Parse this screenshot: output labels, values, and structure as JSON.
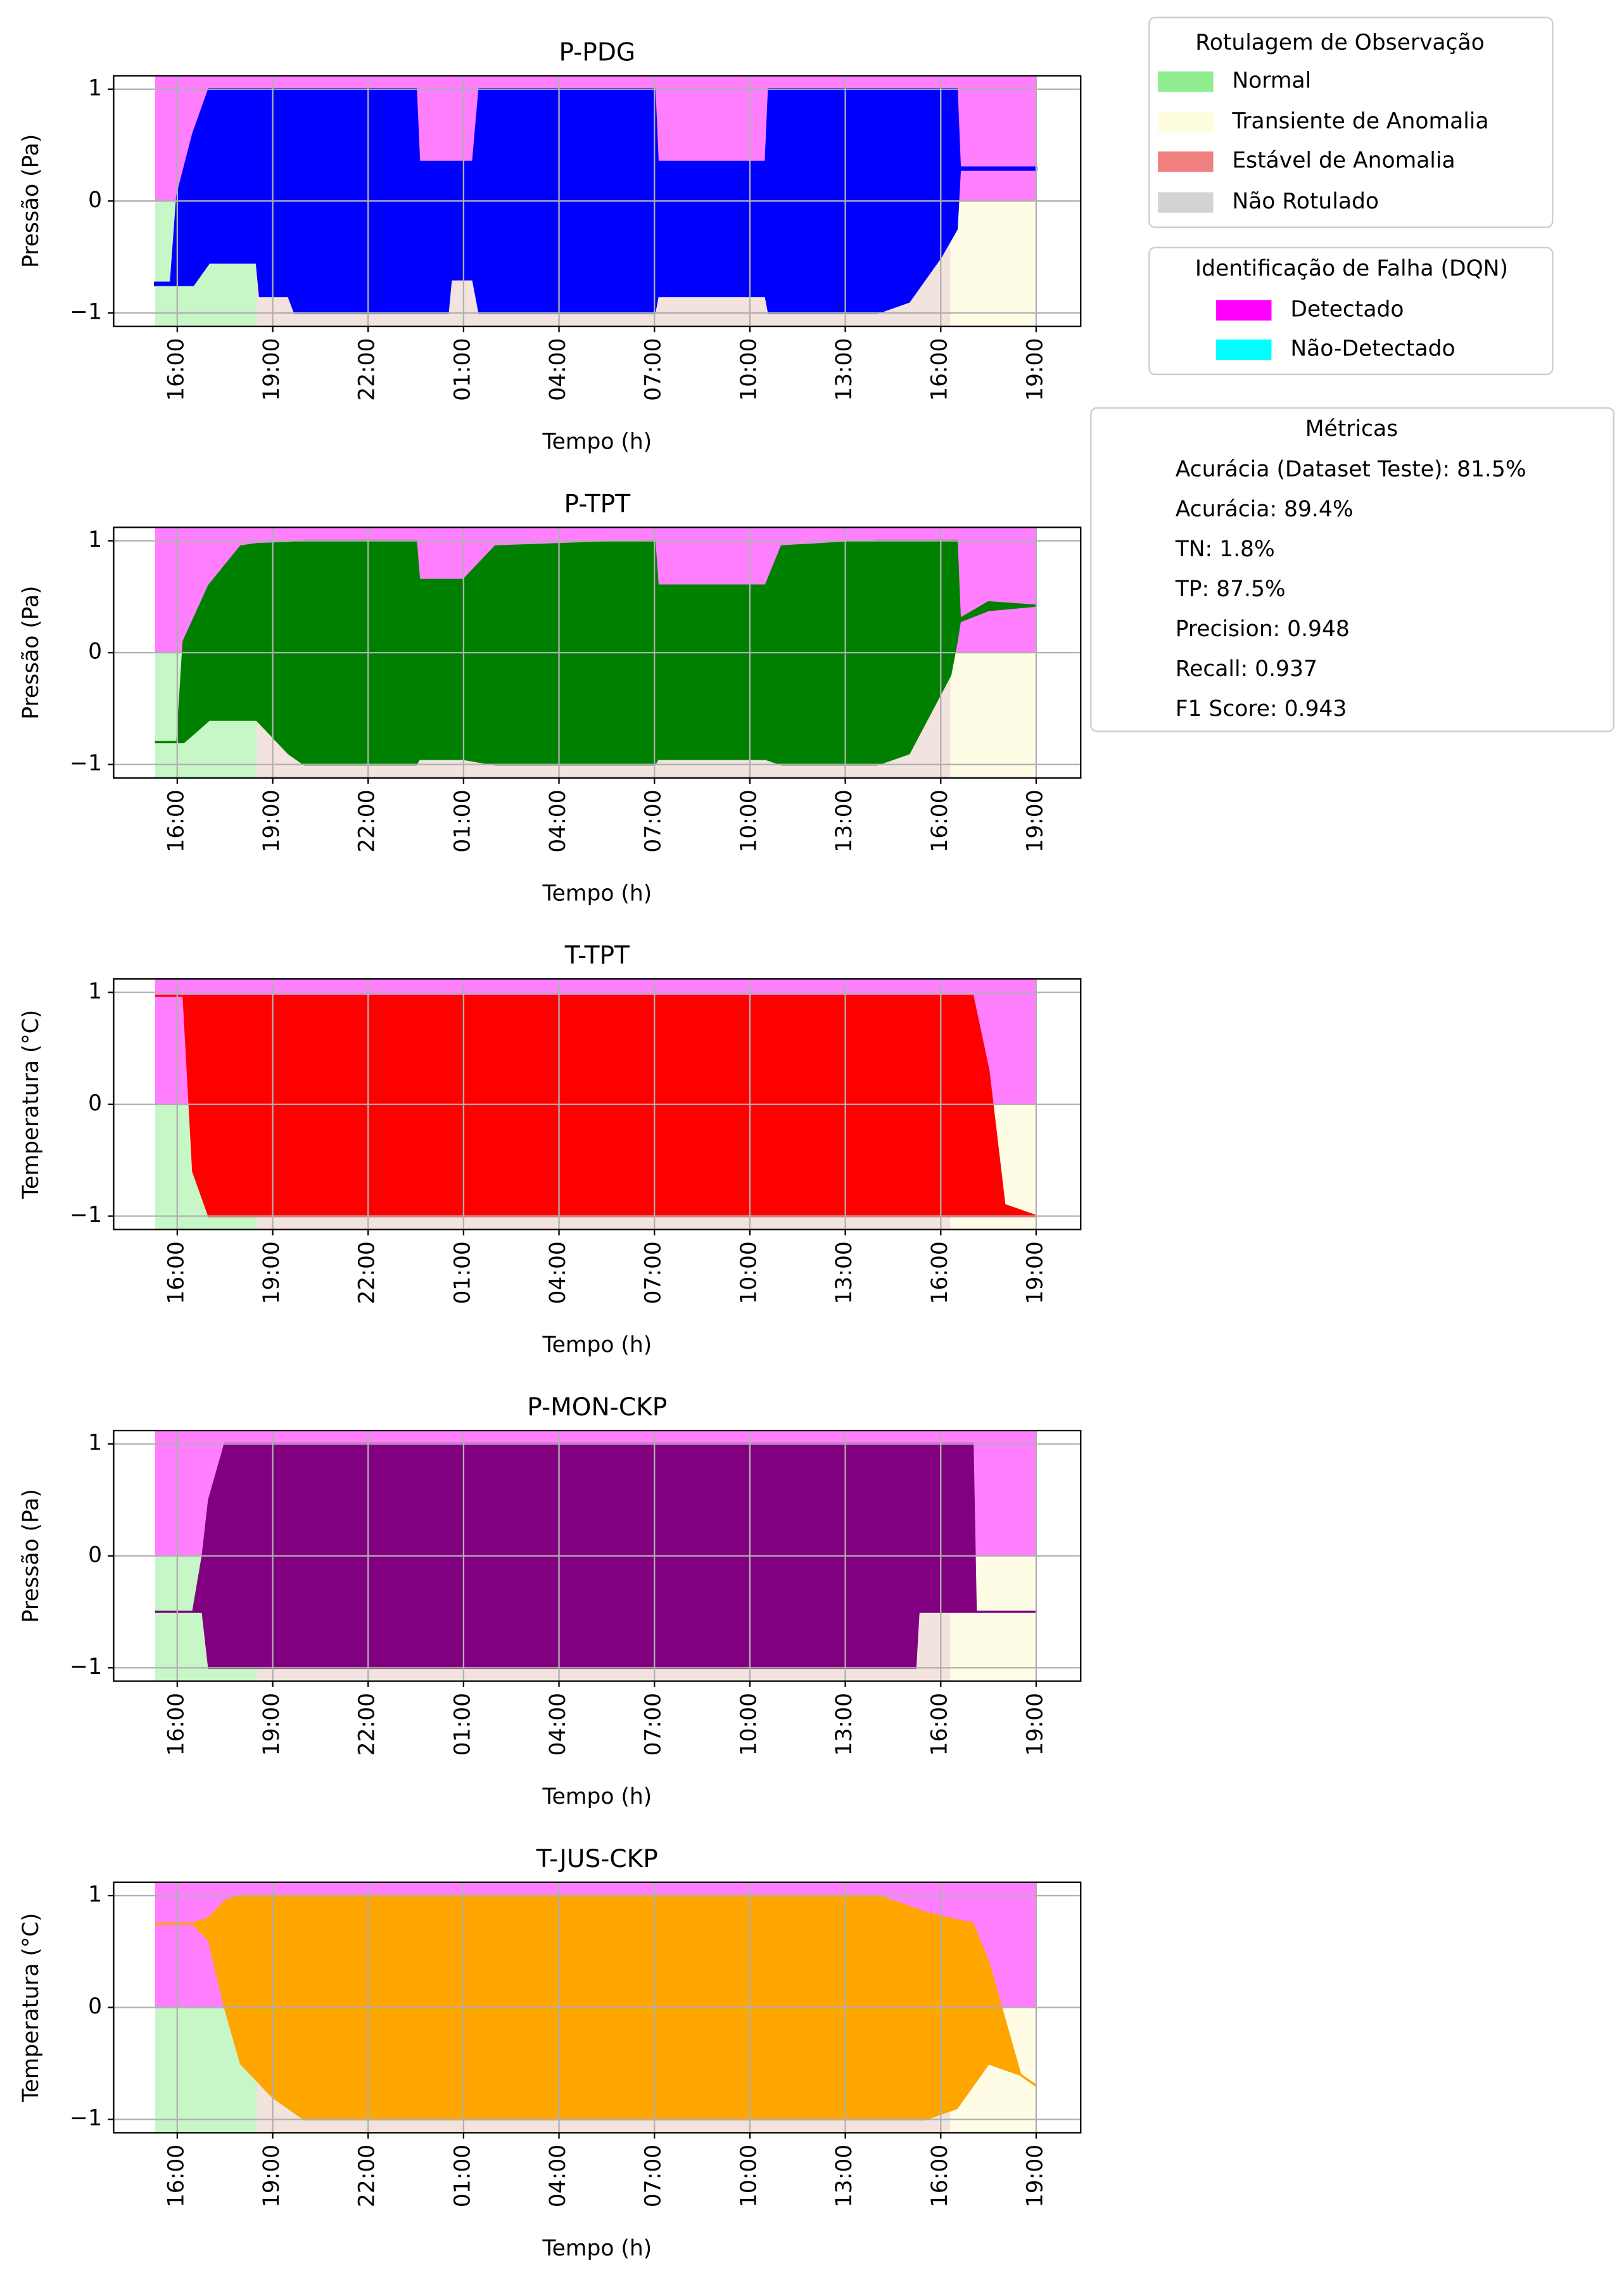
{
  "chart_data": [
    {
      "type": "range-area",
      "title": "P-PDG",
      "ylabel": "Pressão (Pa)",
      "xlabel": "Tempo (h)",
      "x": [
        15.3,
        15.8,
        16.0,
        16.5,
        17.0,
        18.5,
        18.6,
        19.5,
        19.7,
        23.5,
        23.6,
        24.5,
        24.6,
        25.3,
        25.5,
        31.0,
        31.1,
        34.5,
        34.6,
        38.0,
        39.0,
        40.0,
        40.5,
        40.6,
        43.0
      ],
      "series": [
        {
          "color": "#0000ff",
          "high": [
            -0.73,
            -0.73,
            0.05,
            0.6,
            1,
            1,
            1,
            1,
            1,
            1,
            0.35,
            0.35,
            0.35,
            0.35,
            1,
            1,
            0.35,
            0.35,
            1,
            1,
            1,
            1,
            1,
            0.3,
            0.3
          ],
          "low": [
            -0.75,
            -0.75,
            -0.75,
            -0.75,
            -0.55,
            -0.55,
            -0.85,
            -0.85,
            -1,
            -1,
            -1,
            -1,
            -0.7,
            -0.7,
            -1,
            -1,
            -0.85,
            -0.85,
            -1,
            -1,
            -0.9,
            -0.5,
            -0.25,
            0.28,
            0.28
          ]
        }
      ],
      "xlim": [
        14.0,
        44.4
      ],
      "ylim": [
        -1.12,
        1.12
      ],
      "xticks": [
        {
          "value": 16,
          "label": "16:00"
        },
        {
          "value": 19,
          "label": "19:00"
        },
        {
          "value": 22,
          "label": "22:00"
        },
        {
          "value": 25,
          "label": "01:00"
        },
        {
          "value": 28,
          "label": "04:00"
        },
        {
          "value": 31,
          "label": "07:00"
        },
        {
          "value": 34,
          "label": "10:00"
        },
        {
          "value": 37,
          "label": "13:00"
        },
        {
          "value": 40,
          "label": "16:00"
        },
        {
          "value": 43,
          "label": "19:00"
        }
      ],
      "yticks": [
        {
          "value": -1,
          "label": "−1"
        },
        0,
        1
      ],
      "grid": true
    },
    {
      "type": "range-area",
      "title": "P-TPT",
      "ylabel": "Pressão (Pa)",
      "xlabel": "Tempo (h)",
      "x": [
        15.3,
        16.0,
        16.2,
        17.0,
        18.0,
        18.5,
        19.5,
        20.0,
        23.5,
        23.6,
        25.0,
        26.0,
        31.0,
        31.1,
        34.5,
        35.0,
        38.0,
        39.0,
        40.3,
        40.5,
        40.6,
        41.5,
        43.0
      ],
      "series": [
        {
          "color": "#008000",
          "high": [
            -0.8,
            -0.8,
            0.1,
            0.6,
            0.95,
            0.97,
            0.98,
            1,
            1,
            0.65,
            0.65,
            0.95,
            1,
            0.6,
            0.6,
            0.95,
            1,
            1,
            1,
            1,
            0.3,
            0.45,
            0.42
          ],
          "low": [
            -0.8,
            -0.8,
            -0.8,
            -0.6,
            -0.6,
            -0.6,
            -0.9,
            -1,
            -1,
            -0.95,
            -0.95,
            -1,
            -1,
            -0.95,
            -0.95,
            -1,
            -1,
            -0.9,
            -0.2,
            0.1,
            0.28,
            0.38,
            0.42
          ]
        }
      ],
      "xlim": [
        14.0,
        44.4
      ],
      "ylim": [
        -1.12,
        1.12
      ],
      "xticks": [
        {
          "value": 16,
          "label": "16:00"
        },
        {
          "value": 19,
          "label": "19:00"
        },
        {
          "value": 22,
          "label": "22:00"
        },
        {
          "value": 25,
          "label": "01:00"
        },
        {
          "value": 28,
          "label": "04:00"
        },
        {
          "value": 31,
          "label": "07:00"
        },
        {
          "value": 34,
          "label": "10:00"
        },
        {
          "value": 37,
          "label": "13:00"
        },
        {
          "value": 40,
          "label": "16:00"
        },
        {
          "value": 43,
          "label": "19:00"
        }
      ],
      "yticks": [
        {
          "value": -1,
          "label": "−1"
        },
        0,
        1
      ],
      "grid": true
    },
    {
      "type": "range-area",
      "title": "T-TPT",
      "ylabel": "Temperatura (°C)",
      "xlabel": "Tempo (h)",
      "x": [
        15.3,
        16.2,
        16.5,
        17.0,
        41.0,
        41.5,
        42.0,
        43.0
      ],
      "series": [
        {
          "color": "#ff0000",
          "high": [
            0.97,
            0.97,
            0.97,
            0.97,
            0.97,
            0.3,
            -0.9,
            -1
          ],
          "low": [
            0.97,
            0.97,
            -0.6,
            -1,
            -1,
            -1,
            -1,
            -1
          ]
        }
      ],
      "xlim": [
        14.0,
        44.4
      ],
      "ylim": [
        -1.12,
        1.12
      ],
      "xticks": [
        {
          "value": 16,
          "label": "16:00"
        },
        {
          "value": 19,
          "label": "19:00"
        },
        {
          "value": 22,
          "label": "22:00"
        },
        {
          "value": 25,
          "label": "01:00"
        },
        {
          "value": 28,
          "label": "04:00"
        },
        {
          "value": 31,
          "label": "07:00"
        },
        {
          "value": 34,
          "label": "10:00"
        },
        {
          "value": 37,
          "label": "13:00"
        },
        {
          "value": 40,
          "label": "16:00"
        },
        {
          "value": 43,
          "label": "19:00"
        }
      ],
      "yticks": [
        {
          "value": -1,
          "label": "−1"
        },
        0,
        1
      ],
      "grid": true
    },
    {
      "type": "range-area",
      "title": "P-MON-CKP",
      "ylabel": "Pressão (Pa)",
      "xlabel": "Tempo (h)",
      "x": [
        15.3,
        16.5,
        16.8,
        17.0,
        17.5,
        39.2,
        39.3,
        41.0,
        41.1,
        43.0
      ],
      "series": [
        {
          "color": "#800080",
          "high": [
            -0.5,
            -0.5,
            0,
            0.5,
            1,
            1,
            1,
            1,
            -0.5,
            -0.5
          ],
          "low": [
            -0.5,
            -0.5,
            -0.5,
            -1,
            -1,
            -1,
            -0.5,
            -0.5,
            -0.5,
            -0.5
          ]
        }
      ],
      "xlim": [
        14.0,
        44.4
      ],
      "ylim": [
        -1.12,
        1.12
      ],
      "xticks": [
        {
          "value": 16,
          "label": "16:00"
        },
        {
          "value": 19,
          "label": "19:00"
        },
        {
          "value": 22,
          "label": "22:00"
        },
        {
          "value": 25,
          "label": "01:00"
        },
        {
          "value": 28,
          "label": "04:00"
        },
        {
          "value": 31,
          "label": "07:00"
        },
        {
          "value": 34,
          "label": "10:00"
        },
        {
          "value": 37,
          "label": "13:00"
        },
        {
          "value": 40,
          "label": "16:00"
        },
        {
          "value": 43,
          "label": "19:00"
        }
      ],
      "yticks": [
        {
          "value": -1,
          "label": "−1"
        },
        0,
        1
      ],
      "grid": true
    },
    {
      "type": "range-area",
      "title": "T-JUS-CKP",
      "ylabel": "Temperatura (°C)",
      "xlabel": "Tempo (h)",
      "x": [
        15.3,
        16.5,
        17.0,
        17.5,
        18.0,
        19.0,
        20.0,
        38.0,
        39.5,
        40.5,
        41.0,
        41.5,
        42.5,
        43.0
      ],
      "series": [
        {
          "color": "#ffa500",
          "high": [
            0.75,
            0.75,
            0.8,
            0.95,
            1,
            1,
            1,
            1,
            0.85,
            0.78,
            0.75,
            0.4,
            -0.6,
            -0.7
          ],
          "low": [
            0.75,
            0.75,
            0.6,
            0,
            -0.5,
            -0.8,
            -1,
            -1,
            -1,
            -0.9,
            -0.7,
            -0.5,
            -0.6,
            -0.7
          ]
        }
      ],
      "xlim": [
        14.0,
        44.4
      ],
      "ylim": [
        -1.12,
        1.12
      ],
      "xticks": [
        {
          "value": 16,
          "label": "16:00"
        },
        {
          "value": 19,
          "label": "19:00"
        },
        {
          "value": 22,
          "label": "22:00"
        },
        {
          "value": 25,
          "label": "01:00"
        },
        {
          "value": 28,
          "label": "04:00"
        },
        {
          "value": 31,
          "label": "07:00"
        },
        {
          "value": 34,
          "label": "10:00"
        },
        {
          "value": 37,
          "label": "13:00"
        },
        {
          "value": 40,
          "label": "16:00"
        },
        {
          "value": 43,
          "label": "19:00"
        }
      ],
      "yticks": [
        {
          "value": -1,
          "label": "−1"
        },
        0,
        1
      ],
      "grid": true
    }
  ],
  "shading": [
    {
      "start": 15.3,
      "end": 43.0,
      "ylo": 0,
      "yhi": 1.12,
      "color": "#ff00ff",
      "opacity": 0.5
    },
    {
      "start": 15.3,
      "end": 18.5,
      "ylo": -1.12,
      "yhi": 0,
      "color": "#90ee90",
      "opacity": 0.5
    },
    {
      "start": 18.5,
      "end": 40.3,
      "ylo": -1.12,
      "yhi": 0,
      "color": "#e8c8c0",
      "opacity": 0.5
    },
    {
      "start": 40.3,
      "end": 43.0,
      "ylo": -1.12,
      "yhi": 0,
      "color": "#fffacd",
      "opacity": 0.5
    }
  ],
  "legends": [
    {
      "title": "Rotulagem de Observação",
      "entries": [
        {
          "label": "Normal",
          "color": "#90ee90"
        },
        {
          "label": "Transiente de Anomalia",
          "color": "#fffde0"
        },
        {
          "label": "Estável de Anomalia",
          "color": "#f08080"
        },
        {
          "label": "Não Rotulado",
          "color": "#d3d3d3"
        }
      ]
    },
    {
      "title": "Identificação de Falha (DQN)",
      "entries": [
        {
          "label": "Detectado",
          "color": "#ff00ff"
        },
        {
          "label": "Não-Detectado",
          "color": "#00ffff"
        }
      ]
    }
  ],
  "metrics": {
    "title": "Métricas",
    "lines": [
      "Acurácia (Dataset Teste): 81.5%",
      "Acurácia: 89.4%",
      "TN: 1.8%",
      "TP: 87.5%",
      "Precision: 0.948",
      "Recall: 0.937",
      "F1 Score: 0.943"
    ]
  }
}
